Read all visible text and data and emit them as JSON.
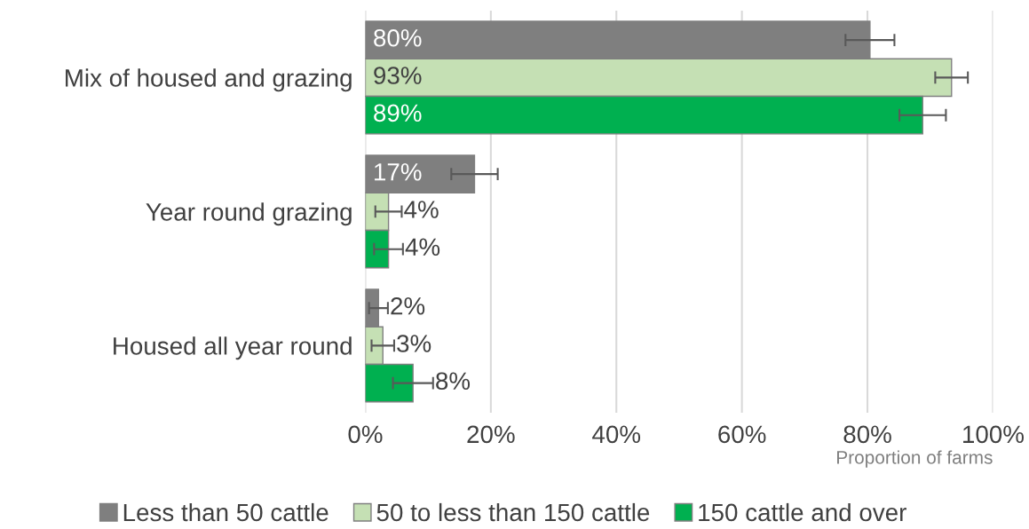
{
  "chart_data": {
    "type": "bar",
    "orientation": "horizontal",
    "xlabel": "Proportion of farms",
    "categories": [
      "Mix of housed and grazing",
      "Year round grazing",
      "Housed all year round"
    ],
    "series": [
      {
        "name": "Less than 50 cattle",
        "color": "#7f7f7f",
        "values": [
          80.4,
          17.4,
          2.1
        ],
        "value_labels": [
          "80%",
          "17%",
          "2%"
        ],
        "errors": [
          3.9,
          3.7,
          1.5
        ]
      },
      {
        "name": "50 to less than 150 cattle",
        "color": "#c5e0b4",
        "values": [
          93.4,
          3.7,
          2.8
        ],
        "value_labels": [
          "93%",
          "4%",
          "3%"
        ],
        "errors": [
          2.6,
          2.1,
          1.8
        ]
      },
      {
        "name": "150 cattle and over",
        "color": "#00b050",
        "values": [
          88.8,
          3.7,
          7.6
        ],
        "value_labels": [
          "89%",
          "4%",
          "8%"
        ],
        "errors": [
          3.7,
          2.3,
          3.2
        ]
      }
    ],
    "xlim": [
      0,
      100
    ],
    "xticks": [
      {
        "value": 0,
        "label": "0%"
      },
      {
        "value": 20,
        "label": "20%"
      },
      {
        "value": 40,
        "label": "40%"
      },
      {
        "value": 60,
        "label": "60%"
      },
      {
        "value": 80,
        "label": "80%"
      },
      {
        "value": 100,
        "label": "100%"
      }
    ],
    "grid": "x",
    "legend": "bottom"
  }
}
